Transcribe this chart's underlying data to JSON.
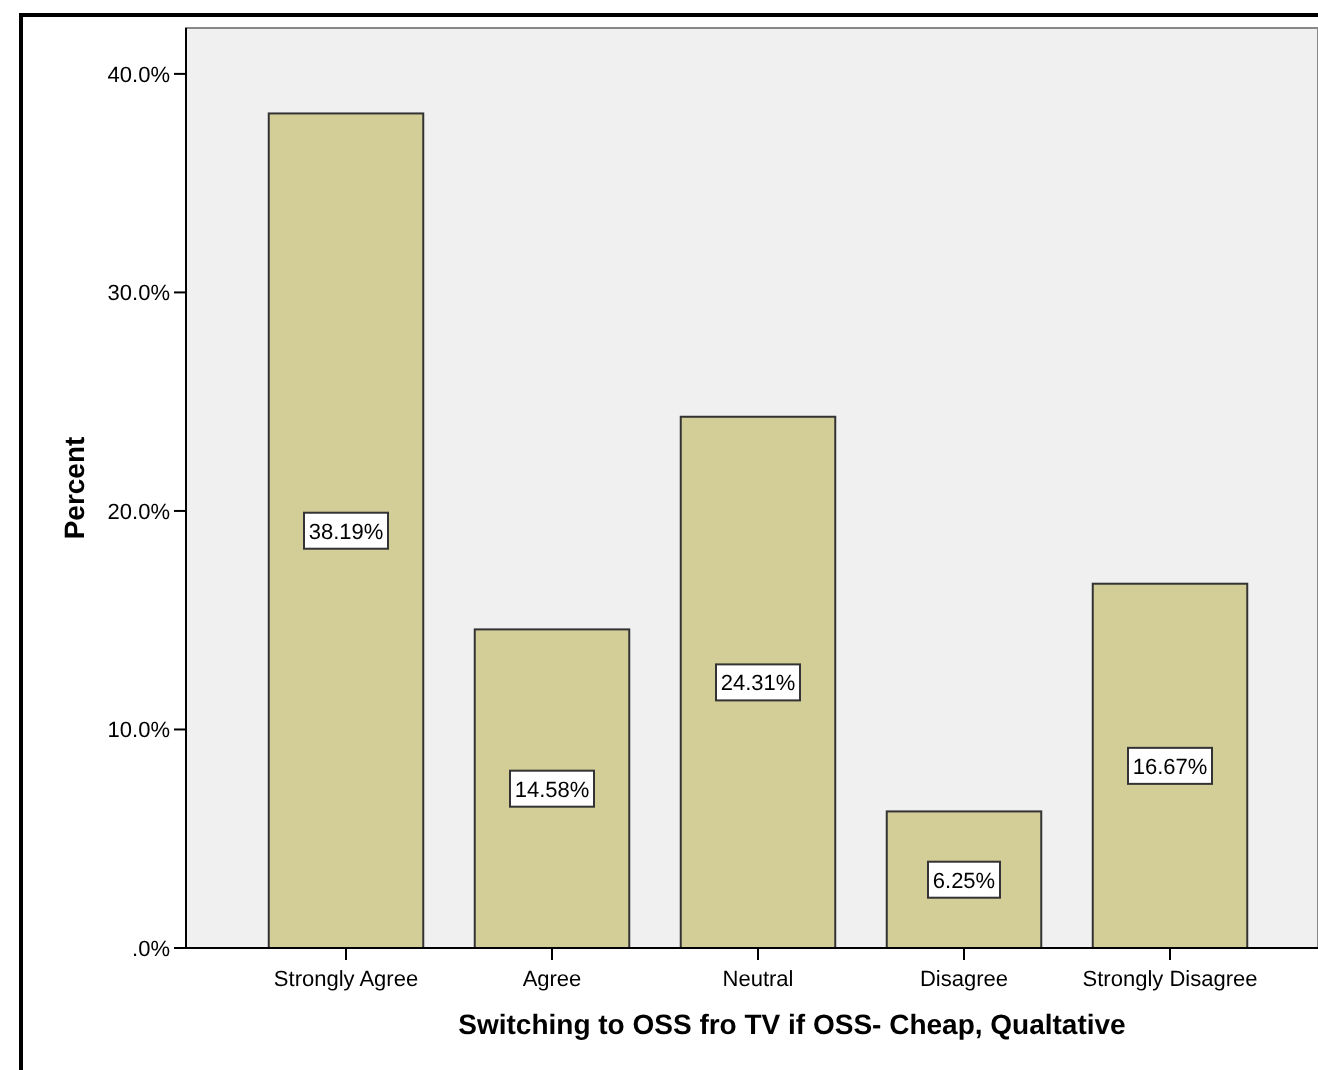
{
  "chart_data": {
    "type": "bar",
    "xlabel": "Switching to OSS fro TV if OSS- Cheap, Qualtative",
    "ylabel": "Percent",
    "categories": [
      "Strongly Agree",
      "Agree",
      "Neutral",
      "Disagree",
      "Strongly Disagree"
    ],
    "values": [
      38.19,
      14.58,
      24.31,
      6.25,
      16.67
    ],
    "value_labels": [
      "38.19%",
      "14.58%",
      "24.31%",
      "6.25%",
      "16.67%"
    ],
    "color": "#d3ce98",
    "ylim": [
      0,
      42.1
    ],
    "yticks": [
      {
        "value": 0,
        "label": ".0%"
      },
      {
        "value": 10,
        "label": "10.0%"
      },
      {
        "value": 20,
        "label": "20.0%"
      },
      {
        "value": 30,
        "label": "30.0%"
      },
      {
        "value": 40,
        "label": "40.0%"
      }
    ],
    "grid": false
  }
}
